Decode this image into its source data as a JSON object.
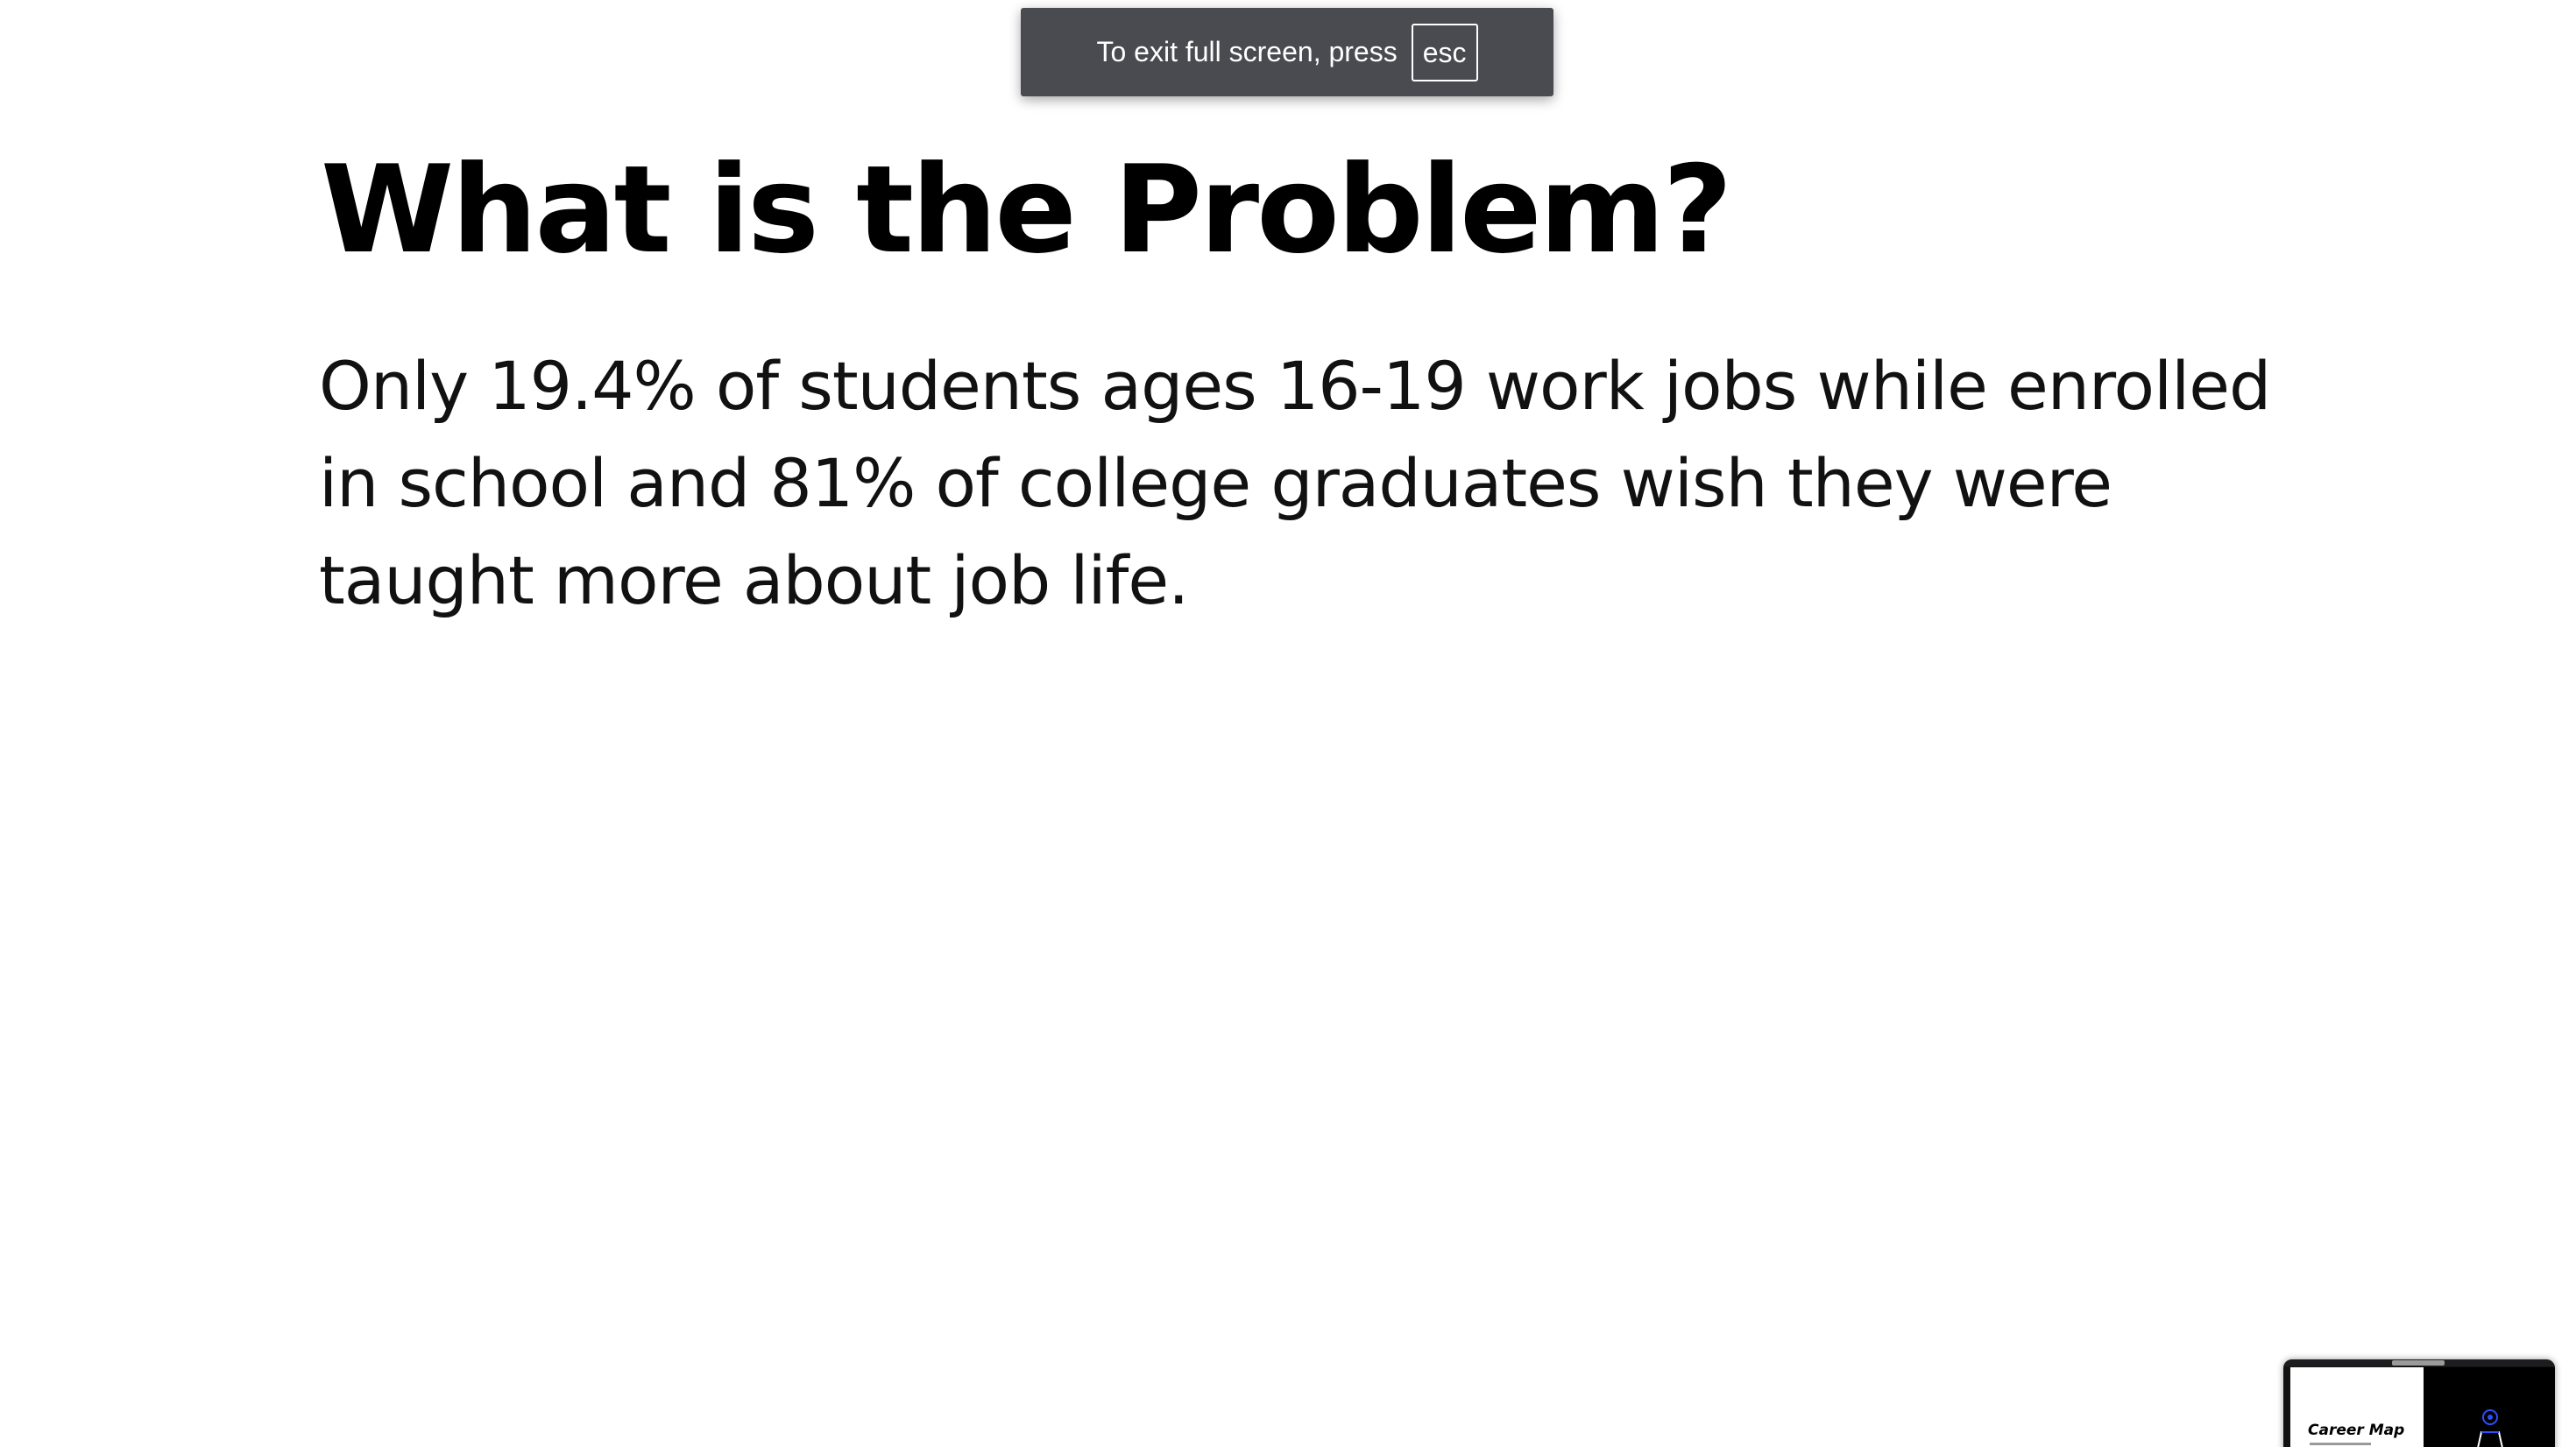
{
  "fullscreen_notice": {
    "message": "To exit full screen, press",
    "key": "esc"
  },
  "slide": {
    "title": "What is the Problem?",
    "body": "Only 19.4% of students ages 16-19 work jobs while enrolled in school and 81% of college graduates wish they were taught more about job life."
  },
  "thumbnail": {
    "title": "Career Map",
    "accent_color": "#2b4fff"
  }
}
